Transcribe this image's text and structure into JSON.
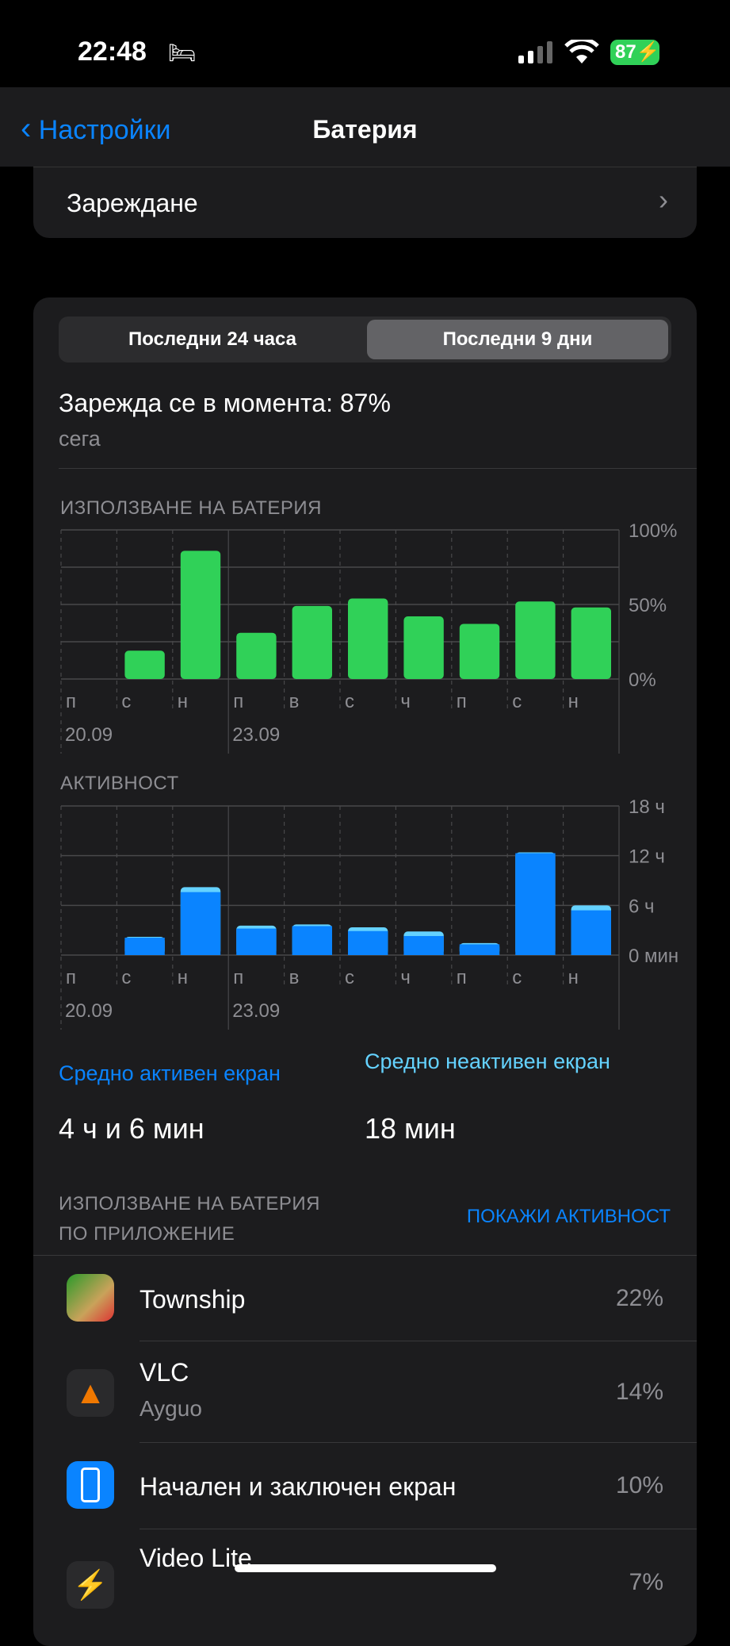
{
  "status": {
    "time": "22:48",
    "battery": "87",
    "colors": {
      "battery": "#30d158"
    }
  },
  "nav": {
    "back": "Настройки",
    "title": "Батерия"
  },
  "charging": {
    "label": "Зареждане"
  },
  "segments": [
    "Последни 24 часа",
    "Последни 9 дни"
  ],
  "selected_segment": 1,
  "current": {
    "text": "Зарежда се в момента: 87%",
    "sub": "сега"
  },
  "chart_data": [
    {
      "type": "bar",
      "title": "ИЗПОЛЗВАНЕ НА БАТЕРИЯ",
      "categories": [
        "п",
        "с",
        "н",
        "п",
        "в",
        "с",
        "ч",
        "п",
        "с",
        "н"
      ],
      "dates": [
        "20.09",
        "",
        "",
        "23.09",
        "",
        "",
        "",
        "",
        "",
        ""
      ],
      "values": [
        0,
        19,
        86,
        31,
        49,
        54,
        42,
        37,
        52,
        48
      ],
      "ylim": [
        0,
        100
      ],
      "yticks": [
        "100%",
        "50%",
        "0%"
      ],
      "color": "#30d158",
      "grid": true
    },
    {
      "type": "bar",
      "title": "АКТИВНОСТ",
      "categories": [
        "п",
        "с",
        "н",
        "п",
        "в",
        "с",
        "ч",
        "п",
        "с",
        "н"
      ],
      "dates": [
        "20.09",
        "",
        "",
        "23.09",
        "",
        "",
        "",
        "",
        "",
        ""
      ],
      "series": [
        {
          "values": [
            0,
            2.1,
            7.6,
            3.2,
            3.5,
            2.9,
            2.3,
            1.3,
            12.3,
            5.4
          ],
          "color": "#0a84ff"
        },
        {
          "values": [
            0,
            0.1,
            0.6,
            0.35,
            0.2,
            0.45,
            0.55,
            0.15,
            0.1,
            0.6
          ],
          "color": "#64d2ff"
        }
      ],
      "ylim": [
        0,
        18
      ],
      "yticks": [
        "18 ч",
        "12 ч",
        "6 ч",
        "0 мин"
      ],
      "grid": true
    }
  ],
  "stats": {
    "active_label": "Средно активен екран",
    "active_value": "4 ч и 6 мин",
    "inactive_label": "Средно неактивен екран",
    "inactive_value": "18 мин"
  },
  "apps_header": {
    "title1": "ИЗПОЛЗВАНЕ НА БАТЕРИЯ",
    "title2": "ПО ПРИЛОЖЕНИЕ",
    "action": "ПОКАЖИ АКТИВНОСТ"
  },
  "apps": [
    {
      "name": "Township",
      "sub": "",
      "pct": "22%"
    },
    {
      "name": "VLC",
      "sub": "Ayguo",
      "pct": "14%"
    },
    {
      "name": "Начален и заключен екран",
      "sub": "",
      "pct": "10%"
    },
    {
      "name": "Video Lite",
      "sub": "",
      "pct": "7%"
    }
  ]
}
